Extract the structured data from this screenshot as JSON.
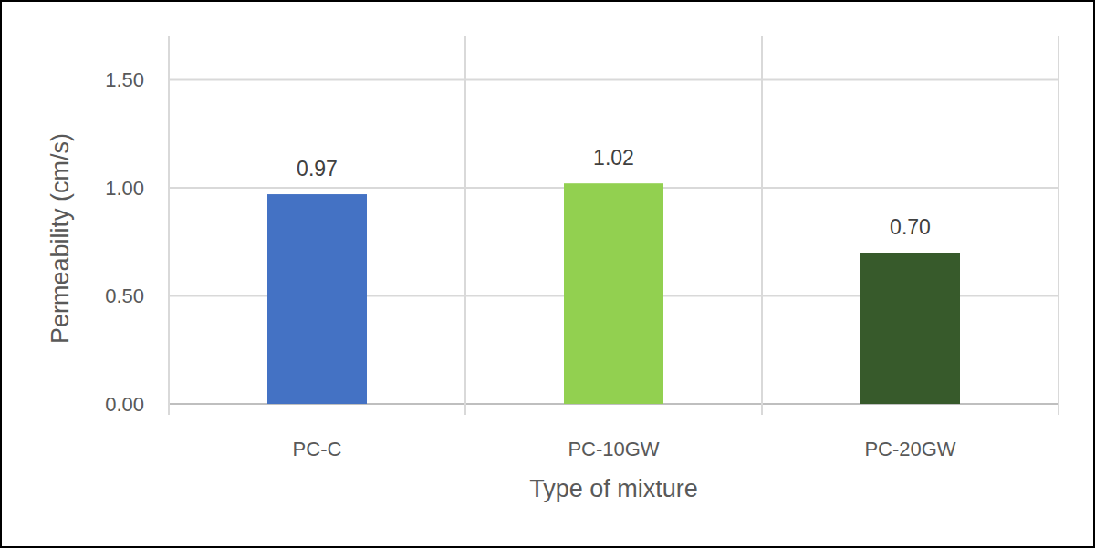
{
  "chart_data": {
    "type": "bar",
    "x_label": "Type of mixture",
    "y_label": "Permeability (cm/s)",
    "categories": [
      "PC-C",
      "PC-10GW",
      "PC-20GW"
    ],
    "values": [
      0.97,
      1.02,
      0.7
    ],
    "value_labels": [
      "0.97",
      "1.02",
      "0.70"
    ],
    "colors": [
      "#4472c4",
      "#92d050",
      "#375a2b"
    ],
    "ylim": [
      0,
      1.7
    ],
    "yticks": [
      {
        "value": 0,
        "label": "0.00"
      },
      {
        "value": 0.5,
        "label": "0.50"
      },
      {
        "value": 1.0,
        "label": "1.00"
      },
      {
        "value": 1.5,
        "label": "1.50"
      }
    ],
    "grid": true,
    "data_labels": true
  }
}
